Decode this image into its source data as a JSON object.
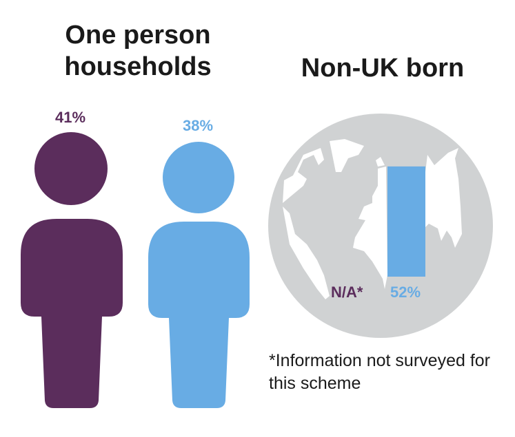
{
  "colors": {
    "purple": "#5b2d5c",
    "blue": "#68ace4",
    "globe": "#d0d2d3"
  },
  "titles": {
    "households": "One person households",
    "non_uk": "Non-UK born"
  },
  "footnote": "*Information not surveyed for this scheme",
  "chart_data": [
    {
      "type": "bar",
      "title": "One person households",
      "values": [
        41,
        38
      ],
      "labels": [
        "41%",
        "38%"
      ]
    },
    {
      "type": "bar",
      "title": "Non-UK born",
      "values": [
        null,
        52
      ],
      "labels": [
        "N/A*",
        "52%"
      ],
      "ylim": [
        0,
        100
      ]
    }
  ]
}
